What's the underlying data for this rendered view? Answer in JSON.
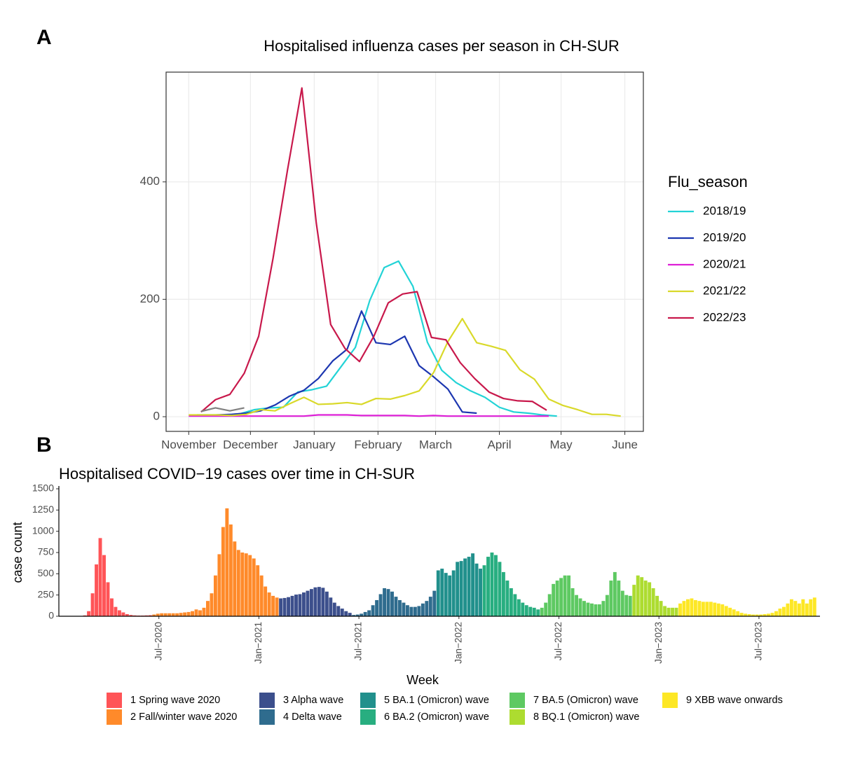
{
  "chart_data": [
    {
      "type": "line",
      "panel": "A",
      "title": "Hospitalised influenza cases per season in CH-SUR",
      "legend_title": "Flu_season",
      "legend": "right",
      "grid": true,
      "xlim": [
        -11,
        221
      ],
      "xticks": [
        {
          "value": 0,
          "label": "November"
        },
        {
          "value": 30,
          "label": "December"
        },
        {
          "value": 61,
          "label": "January"
        },
        {
          "value": 92,
          "label": "February"
        },
        {
          "value": 120,
          "label": "March"
        },
        {
          "value": 151,
          "label": "April"
        },
        {
          "value": 181,
          "label": "May"
        },
        {
          "value": 212,
          "label": "June"
        }
      ],
      "ylim": [
        -25,
        587
      ],
      "yticks": [
        0,
        200,
        400
      ],
      "series": [
        {
          "name": "2018/19",
          "color": "#22d3d6",
          "x": [
            4,
            11,
            18,
            25,
            32,
            39,
            46,
            53,
            60,
            67,
            74,
            81,
            88,
            95,
            102,
            109,
            116,
            123,
            130,
            137,
            144,
            151,
            158,
            165,
            172,
            179
          ],
          "values": [
            3,
            3,
            3,
            5,
            12,
            15,
            16,
            42,
            46,
            52,
            85,
            118,
            198,
            254,
            265,
            222,
            127,
            79,
            58,
            44,
            33,
            16,
            8,
            6,
            3,
            1
          ]
        },
        {
          "name": "2019/20",
          "color": "#1c36b0",
          "x": [
            7,
            14,
            21,
            28,
            35,
            42,
            49,
            56,
            63,
            70,
            77,
            84,
            91,
            98,
            105,
            112,
            119,
            126,
            133,
            140
          ],
          "values": [
            2,
            3,
            4,
            6,
            10,
            20,
            35,
            45,
            65,
            95,
            115,
            180,
            126,
            123,
            137,
            87,
            68,
            47,
            8,
            6
          ]
        },
        {
          "name": "2020/21",
          "color": "#dd1fd6",
          "x": [
            0,
            7,
            14,
            21,
            28,
            35,
            42,
            49,
            56,
            63,
            70,
            77,
            84,
            91,
            98,
            105,
            112,
            119,
            126,
            133,
            140,
            147,
            154,
            161,
            168,
            175
          ],
          "values": [
            1,
            1,
            1,
            1,
            1,
            1,
            1,
            1,
            1,
            3,
            3,
            3,
            2,
            2,
            2,
            2,
            1,
            2,
            1,
            1,
            1,
            1,
            1,
            1,
            1,
            1
          ]
        },
        {
          "name": "2021/22",
          "color": "#d9d92a",
          "x": [
            0,
            7,
            14,
            21,
            28,
            35,
            42,
            49,
            56,
            63,
            70,
            77,
            84,
            91,
            98,
            105,
            112,
            119,
            126,
            133,
            140,
            147,
            154,
            161,
            168,
            175,
            182,
            189,
            196,
            203,
            210
          ],
          "values": [
            3,
            3,
            3,
            2,
            4,
            12,
            10,
            22,
            33,
            21,
            22,
            24,
            21,
            31,
            30,
            36,
            44,
            75,
            128,
            167,
            126,
            120,
            113,
            80,
            64,
            30,
            19,
            12,
            4,
            4,
            1
          ]
        },
        {
          "name": "2022/23",
          "color": "#c8184b",
          "x": [
            6,
            13,
            20,
            27,
            34,
            41,
            48,
            55,
            62,
            69,
            76,
            83,
            90,
            97,
            104,
            111,
            118,
            125,
            132,
            139,
            146,
            153,
            160,
            167,
            174
          ],
          "values": [
            8,
            29,
            38,
            74,
            137,
            270,
            420,
            560,
            330,
            157,
            116,
            94,
            137,
            194,
            209,
            213,
            135,
            131,
            92,
            65,
            42,
            31,
            27,
            26,
            11
          ]
        },
        {
          "color": "#808080",
          "x": [
            6,
            13,
            20,
            27
          ],
          "values": [
            9,
            15,
            10,
            15
          ]
        }
      ]
    },
    {
      "type": "bar",
      "panel": "B",
      "title": "Hospitalised COVID−19 cases over time in CH-SUR",
      "x_label": "Week",
      "y_label": "case count",
      "legend": "bottom",
      "grid": false,
      "xlim": [
        2020,
        2023.805
      ],
      "xticks": [
        {
          "value": 2020.5,
          "label": "Jul−2020"
        },
        {
          "value": 2021,
          "label": "Jan−2021"
        },
        {
          "value": 2021.5,
          "label": "Jul−2021"
        },
        {
          "value": 2022,
          "label": "Jan−2022"
        },
        {
          "value": 2022.5,
          "label": "Jul−2022"
        },
        {
          "value": 2023,
          "label": "Jan−2023"
        },
        {
          "value": 2023.5,
          "label": "Jul−2023"
        }
      ],
      "ylim": [
        0,
        1500
      ],
      "yticks": [
        0,
        250,
        500,
        750,
        1000,
        1250,
        1500
      ],
      "series": [
        {
          "name": "1 Spring wave 2020",
          "color": "#ff5457",
          "x": [
            2020.13,
            2020.1492,
            2020.1684,
            2020.1876,
            2020.2068,
            2020.226,
            2020.2452,
            2020.2644,
            2020.2836,
            2020.3028,
            2020.322,
            2020.3412,
            2020.3604,
            2020.3796,
            2020.3988,
            2020.418,
            2020.4372,
            2020.4564
          ],
          "values": [
            10,
            60,
            270,
            610,
            920,
            720,
            400,
            210,
            110,
            70,
            45,
            25,
            15,
            10,
            8,
            8,
            10,
            12
          ]
        },
        {
          "name": "2 Fall/winter wave 2020",
          "color": "#ff8a2a",
          "x": [
            2020.4756,
            2020.4948,
            2020.514,
            2020.5332,
            2020.5524,
            2020.5716,
            2020.5908,
            2020.61,
            2020.6292,
            2020.6484,
            2020.6676,
            2020.6868,
            2020.706,
            2020.7252,
            2020.7444,
            2020.7636,
            2020.7828,
            2020.802,
            2020.8212,
            2020.8404,
            2020.8596,
            2020.8788,
            2020.898,
            2020.9172,
            2020.9364,
            2020.9556,
            2020.9748,
            2020.994,
            2021.0132,
            2021.0324,
            2021.0516,
            2021.0708,
            2021.09
          ],
          "values": [
            20,
            30,
            35,
            35,
            35,
            35,
            35,
            40,
            45,
            50,
            60,
            80,
            70,
            100,
            180,
            270,
            480,
            730,
            1050,
            1270,
            1080,
            880,
            780,
            750,
            740,
            720,
            680,
            600,
            480,
            350,
            280,
            240,
            220
          ]
        },
        {
          "name": "3 Alpha wave",
          "color": "#3c4f8c",
          "x": [
            2021.1092,
            2021.1284,
            2021.1476,
            2021.1668,
            2021.186,
            2021.2052,
            2021.2244,
            2021.2436,
            2021.2628,
            2021.282,
            2021.3012,
            2021.3204,
            2021.3396,
            2021.3588,
            2021.378,
            2021.3972,
            2021.4164,
            2021.4356,
            2021.4548
          ],
          "values": [
            210,
            215,
            225,
            240,
            255,
            260,
            280,
            300,
            320,
            340,
            345,
            335,
            290,
            220,
            160,
            120,
            90,
            60,
            40
          ]
        },
        {
          "name": "4 Delta wave",
          "color": "#2f6c8e",
          "x": [
            2021.474,
            2021.4932,
            2021.5124,
            2021.5316,
            2021.5508,
            2021.57,
            2021.5892,
            2021.6084,
            2021.6276,
            2021.6468,
            2021.666,
            2021.6852,
            2021.7044,
            2021.7236,
            2021.7428,
            2021.762,
            2021.7812,
            2021.8004,
            2021.8196,
            2021.8388,
            2021.858,
            2021.8772
          ],
          "values": [
            15,
            20,
            30,
            50,
            70,
            130,
            190,
            260,
            330,
            320,
            290,
            230,
            190,
            160,
            130,
            110,
            110,
            120,
            150,
            180,
            230,
            300
          ]
        },
        {
          "name": "5 BA.1 (Omicron) wave",
          "color": "#21908c",
          "x": [
            2021.8964,
            2021.9156,
            2021.9348,
            2021.954,
            2021.9732,
            2021.9924,
            2022.0116,
            2022.0308,
            2022.05,
            2022.0692,
            2022.0884,
            2022.1076
          ],
          "values": [
            540,
            560,
            510,
            480,
            540,
            640,
            650,
            680,
            700,
            740,
            620,
            560
          ]
        },
        {
          "name": "6 BA.2 (Omicron) wave",
          "color": "#28ae80",
          "x": [
            2022.1268,
            2022.146,
            2022.1652,
            2022.1844,
            2022.2036,
            2022.2228,
            2022.242,
            2022.2612,
            2022.2804,
            2022.2996,
            2022.3188,
            2022.338,
            2022.3572,
            2022.3764,
            2022.3956
          ],
          "values": [
            600,
            700,
            750,
            720,
            640,
            520,
            420,
            330,
            260,
            200,
            160,
            130,
            110,
            100,
            80
          ]
        },
        {
          "name": "7 BA.5 (Omicron) wave",
          "color": "#5ec962",
          "x": [
            2022.4148,
            2022.434,
            2022.4532,
            2022.4724,
            2022.4916,
            2022.5108,
            2022.53,
            2022.5492,
            2022.5684,
            2022.5876,
            2022.6068,
            2022.626,
            2022.6452,
            2022.6644,
            2022.6836,
            2022.7028,
            2022.722,
            2022.7412,
            2022.7604,
            2022.7796,
            2022.7988,
            2022.818,
            2022.8372,
            2022.8564
          ],
          "values": [
            100,
            160,
            260,
            380,
            420,
            450,
            480,
            480,
            330,
            250,
            210,
            180,
            160,
            150,
            140,
            140,
            180,
            250,
            420,
            520,
            420,
            300,
            250,
            240
          ]
        },
        {
          "name": "8 BQ.1 (Omicron) wave",
          "color": "#addc30",
          "x": [
            2022.8756,
            2022.8948,
            2022.914,
            2022.9332,
            2022.9524,
            2022.9716,
            2022.9908,
            2023.01,
            2023.0292,
            2023.0484,
            2023.0676,
            2023.0868
          ],
          "values": [
            370,
            480,
            460,
            420,
            400,
            330,
            240,
            180,
            120,
            100,
            100,
            100
          ]
        },
        {
          "name": "9 XBB wave onwards",
          "color": "#fde725",
          "x": [
            2023.106,
            2023.1252,
            2023.1444,
            2023.1636,
            2023.1828,
            2023.202,
            2023.2212,
            2023.2404,
            2023.2596,
            2023.2788,
            2023.298,
            2023.3172,
            2023.3364,
            2023.3556,
            2023.3748,
            2023.394,
            2023.4132,
            2023.4324,
            2023.4516,
            2023.4708,
            2023.49,
            2023.5092,
            2023.5284,
            2023.5476,
            2023.5668,
            2023.586,
            2023.6052,
            2023.6244,
            2023.6436,
            2023.6628,
            2023.682,
            2023.7012,
            2023.7204,
            2023.7396,
            2023.7588,
            2023.778
          ],
          "values": [
            150,
            180,
            200,
            210,
            190,
            180,
            170,
            170,
            170,
            160,
            150,
            140,
            120,
            100,
            80,
            60,
            40,
            30,
            25,
            20,
            20,
            20,
            25,
            30,
            40,
            60,
            90,
            110,
            150,
            200,
            180,
            150,
            200,
            150,
            200,
            220
          ]
        }
      ]
    }
  ]
}
